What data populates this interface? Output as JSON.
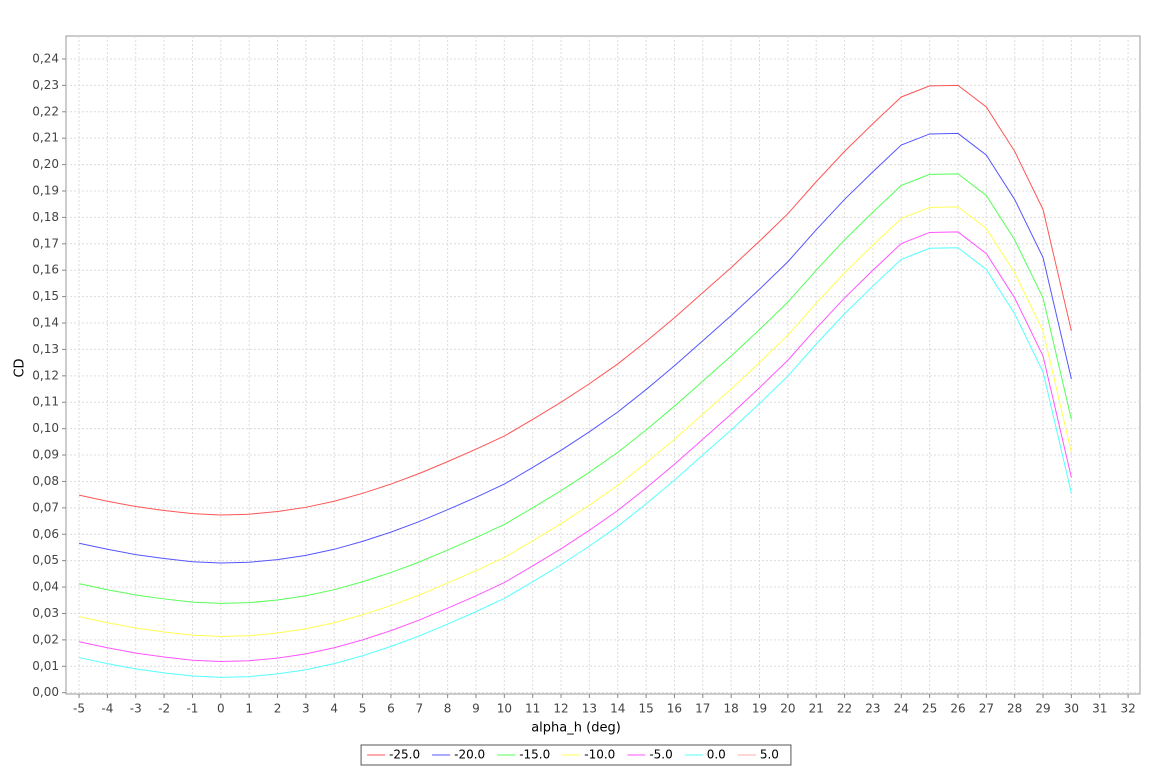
{
  "chart_data": {
    "type": "line",
    "x_label": "alpha_h (deg)",
    "y_label": "CD",
    "x": [
      -5,
      -4,
      -3,
      -2,
      -1,
      0,
      1,
      2,
      3,
      4,
      5,
      6,
      7,
      8,
      9,
      10,
      11,
      12,
      13,
      14,
      15,
      16,
      17,
      18,
      19,
      20,
      21,
      22,
      23,
      24,
      25,
      26,
      27,
      28,
      29,
      30
    ],
    "series": [
      {
        "name": "-25.0",
        "color": "#ff5555",
        "values": [
          0.0748,
          0.0725,
          0.0705,
          0.069,
          0.0678,
          0.0673,
          0.0676,
          0.0686,
          0.0702,
          0.0725,
          0.0755,
          0.079,
          0.083,
          0.0875,
          0.0922,
          0.0972,
          0.1035,
          0.11,
          0.117,
          0.1245,
          0.133,
          0.142,
          0.1515,
          0.161,
          0.171,
          0.1814,
          0.1935,
          0.205,
          0.2155,
          0.2256,
          0.2298,
          0.23,
          0.2218,
          0.205,
          0.183,
          0.137
        ]
      },
      {
        "name": "-20.0",
        "color": "#5555ff",
        "values": [
          0.0566,
          0.0543,
          0.0523,
          0.0508,
          0.0496,
          0.0491,
          0.0494,
          0.0504,
          0.052,
          0.0543,
          0.0573,
          0.0608,
          0.0648,
          0.0693,
          0.074,
          0.079,
          0.0853,
          0.0918,
          0.0988,
          0.1063,
          0.1148,
          0.1238,
          0.1333,
          0.1428,
          0.1528,
          0.1632,
          0.1753,
          0.1868,
          0.1973,
          0.2074,
          0.2116,
          0.2118,
          0.2036,
          0.1868,
          0.1648,
          0.1188
        ]
      },
      {
        "name": "-15.0",
        "color": "#55ff55",
        "values": [
          0.0413,
          0.039,
          0.037,
          0.0355,
          0.0343,
          0.0338,
          0.0341,
          0.0351,
          0.0367,
          0.039,
          0.042,
          0.0455,
          0.0495,
          0.054,
          0.0587,
          0.0637,
          0.07,
          0.0765,
          0.0835,
          0.091,
          0.0995,
          0.1085,
          0.118,
          0.1275,
          0.1375,
          0.1479,
          0.16,
          0.1715,
          0.182,
          0.1921,
          0.1963,
          0.1965,
          0.1883,
          0.1715,
          0.1495,
          0.1035
        ]
      },
      {
        "name": "-10.0",
        "color": "#ffff55",
        "values": [
          0.0288,
          0.0265,
          0.0245,
          0.023,
          0.0218,
          0.0213,
          0.0216,
          0.0226,
          0.0242,
          0.0265,
          0.0295,
          0.033,
          0.037,
          0.0415,
          0.0462,
          0.0512,
          0.0575,
          0.064,
          0.071,
          0.0785,
          0.087,
          0.096,
          0.1055,
          0.115,
          0.125,
          0.1354,
          0.1475,
          0.159,
          0.1695,
          0.1796,
          0.1838,
          0.184,
          0.1758,
          0.159,
          0.137,
          0.091
        ]
      },
      {
        "name": "-5.0",
        "color": "#ff55ff",
        "values": [
          0.0193,
          0.017,
          0.015,
          0.0135,
          0.0123,
          0.0118,
          0.0121,
          0.0131,
          0.0147,
          0.017,
          0.02,
          0.0235,
          0.0275,
          0.032,
          0.0367,
          0.0417,
          0.048,
          0.0545,
          0.0615,
          0.069,
          0.0775,
          0.0865,
          0.096,
          0.1055,
          0.1155,
          0.1259,
          0.138,
          0.1495,
          0.16,
          0.1701,
          0.1743,
          0.1745,
          0.1663,
          0.1495,
          0.1275,
          0.0815
        ]
      },
      {
        "name": "0.0",
        "color": "#55ffff",
        "values": [
          0.0133,
          0.011,
          0.009,
          0.0075,
          0.0063,
          0.0058,
          0.0061,
          0.0071,
          0.0087,
          0.011,
          0.014,
          0.0175,
          0.0215,
          0.026,
          0.0307,
          0.0357,
          0.042,
          0.0485,
          0.0555,
          0.063,
          0.0715,
          0.0805,
          0.09,
          0.0995,
          0.1095,
          0.1199,
          0.132,
          0.1435,
          0.154,
          0.1641,
          0.1683,
          0.1685,
          0.1603,
          0.1435,
          0.1215,
          0.0755
        ]
      },
      {
        "name": "5.0",
        "color": "#ffafaf",
        "values": [
          null,
          null,
          null,
          null,
          null,
          null,
          null,
          null,
          null,
          null,
          null,
          null,
          null,
          null,
          null,
          null,
          null,
          null,
          null,
          null,
          null,
          null,
          null,
          null,
          null,
          null,
          null,
          null,
          null,
          null,
          null,
          null,
          null,
          null,
          null,
          null
        ]
      }
    ],
    "xlim": [
      -5.46,
      32.42
    ],
    "xticks": [
      -5,
      -4,
      -3,
      -2,
      -1,
      0,
      1,
      2,
      3,
      4,
      5,
      6,
      7,
      8,
      9,
      10,
      11,
      12,
      13,
      14,
      15,
      16,
      17,
      18,
      19,
      20,
      21,
      22,
      23,
      24,
      25,
      26,
      27,
      28,
      29,
      30,
      31,
      32
    ],
    "ylim": [
      -0.0005,
      0.2487
    ],
    "yticks": [
      {
        "value": 0,
        "label": "0,00"
      },
      {
        "value": 0.01,
        "label": "0,01"
      },
      {
        "value": 0.02,
        "label": "0,02"
      },
      {
        "value": 0.03,
        "label": "0,03"
      },
      {
        "value": 0.04,
        "label": "0,04"
      },
      {
        "value": 0.05,
        "label": "0,05"
      },
      {
        "value": 0.06,
        "label": "0,06"
      },
      {
        "value": 0.07,
        "label": "0,07"
      },
      {
        "value": 0.08,
        "label": "0,08"
      },
      {
        "value": 0.09,
        "label": "0,09"
      },
      {
        "value": 0.1,
        "label": "0,10"
      },
      {
        "value": 0.11,
        "label": "0,11"
      },
      {
        "value": 0.12,
        "label": "0,12"
      },
      {
        "value": 0.13,
        "label": "0,13"
      },
      {
        "value": 0.14,
        "label": "0,14"
      },
      {
        "value": 0.15,
        "label": "0,15"
      },
      {
        "value": 0.16,
        "label": "0,16"
      },
      {
        "value": 0.17,
        "label": "0,17"
      },
      {
        "value": 0.18,
        "label": "0,18"
      },
      {
        "value": 0.19,
        "label": "0,19"
      },
      {
        "value": 0.2,
        "label": "0,20"
      },
      {
        "value": 0.21,
        "label": "0,21"
      },
      {
        "value": 0.22,
        "label": "0,22"
      },
      {
        "value": 0.23,
        "label": "0,23"
      },
      {
        "value": 0.24,
        "label": "0,24"
      }
    ],
    "grid": true,
    "legend": "bottom"
  }
}
